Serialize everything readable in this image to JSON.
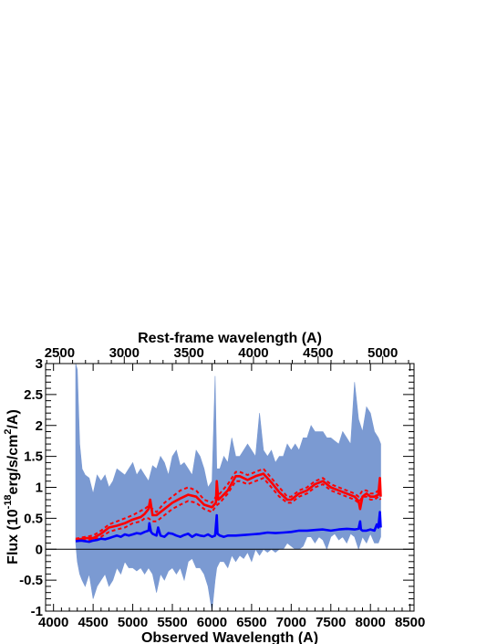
{
  "chart_data": {
    "type": "line",
    "xlabel": "Observed Wavelength (A)",
    "x2label": "Rest-frame wavelength (A)",
    "ylabel": {
      "base": "Flux (10",
      "exp1": "-18",
      "mid": "erg/s/cm",
      "exp2": "2",
      "end": "/A)"
    },
    "xlim": [
      3900,
      8550
    ],
    "ylim": [
      -1,
      3
    ],
    "x_ticks": [
      4000,
      4500,
      5000,
      5500,
      6000,
      6500,
      7000,
      7500,
      8000,
      8500
    ],
    "x2_ticks": [
      2500,
      3000,
      3500,
      4000,
      4500,
      5000
    ],
    "y_ticks": [
      -1,
      -0.5,
      0,
      0.5,
      1,
      1.5,
      2,
      2.5,
      3
    ],
    "redshift_factor": 1.631,
    "zero_line": true,
    "colors": {
      "observed": "#7b9ad2",
      "model": "#ff0000",
      "error": "#0000ff"
    },
    "series": [
      {
        "style": "band",
        "x": [
          4280,
          4300,
          4330,
          4360,
          4400,
          4450,
          4500,
          4550,
          4600,
          4650,
          4700,
          4750,
          4800,
          4850,
          4900,
          4950,
          5000,
          5050,
          5100,
          5150,
          5200,
          5250,
          5300,
          5350,
          5400,
          5450,
          5500,
          5550,
          5600,
          5650,
          5700,
          5750,
          5800,
          5850,
          5900,
          5950,
          6000,
          6040,
          6060,
          6100,
          6150,
          6200,
          6250,
          6300,
          6350,
          6400,
          6450,
          6500,
          6550,
          6600,
          6650,
          6700,
          6750,
          6800,
          6850,
          6900,
          6950,
          7000,
          7050,
          7100,
          7150,
          7200,
          7250,
          7300,
          7350,
          7400,
          7450,
          7500,
          7550,
          7600,
          7650,
          7700,
          7750,
          7800,
          7850,
          7900,
          7950,
          8000,
          8050,
          8100,
          8130
        ],
        "upper": [
          3.0,
          2.9,
          1.7,
          1.3,
          1.2,
          1.15,
          0.9,
          1.2,
          1.1,
          1.2,
          1.0,
          1.1,
          1.3,
          1.25,
          1.2,
          1.3,
          1.4,
          1.2,
          1.3,
          1.2,
          1.1,
          1.35,
          1.3,
          1.5,
          1.4,
          1.2,
          1.5,
          1.6,
          1.35,
          1.4,
          1.3,
          1.2,
          1.6,
          1.5,
          1.3,
          1.0,
          1.1,
          2.8,
          1.3,
          1.3,
          1.5,
          1.4,
          1.8,
          1.5,
          1.5,
          1.6,
          1.7,
          1.6,
          1.5,
          2.2,
          1.6,
          1.5,
          1.6,
          1.4,
          1.5,
          1.5,
          1.7,
          1.6,
          1.7,
          1.6,
          1.8,
          1.8,
          2.0,
          1.9,
          1.9,
          1.9,
          1.8,
          1.8,
          1.75,
          1.7,
          1.9,
          1.8,
          1.7,
          2.7,
          2.1,
          1.9,
          2.3,
          2.2,
          1.9,
          1.8,
          1.7
        ],
        "lower": [
          0.1,
          -0.2,
          -0.4,
          -0.5,
          -0.6,
          -0.4,
          -0.8,
          -0.6,
          -0.5,
          -0.4,
          -0.6,
          -0.5,
          -0.3,
          -0.4,
          -0.2,
          -0.3,
          -0.3,
          -0.35,
          -0.3,
          -0.4,
          -0.3,
          -0.4,
          -0.7,
          -0.4,
          -0.5,
          -0.35,
          -0.3,
          -0.4,
          -0.3,
          -0.5,
          -0.2,
          -0.15,
          -0.3,
          -0.3,
          -0.4,
          -0.6,
          -1.0,
          -0.5,
          -0.3,
          -0.2,
          -0.2,
          -0.3,
          -0.1,
          -0.2,
          -0.1,
          -0.15,
          -0.05,
          -0.2,
          0.0,
          -0.1,
          0.0,
          -0.05,
          0.0,
          -0.05,
          0.0,
          0.0,
          0.1,
          0.05,
          0.0,
          0.0,
          0.05,
          0.2,
          0.2,
          0.1,
          0.2,
          0.15,
          0.0,
          0.2,
          0.25,
          0.15,
          0.2,
          0.1,
          0.25,
          0.2,
          0.0,
          0.2,
          0.1,
          0.25,
          0.1,
          0.1,
          0.2
        ]
      },
      {
        "style": "dashed",
        "x": [
          4280,
          4400,
          4500,
          4600,
          4700,
          4800,
          4900,
          5000,
          5100,
          5150,
          5200,
          5250,
          5300,
          5400,
          5500,
          5600,
          5700,
          5800,
          5900,
          6000,
          6050,
          6100,
          6200,
          6300,
          6350,
          6450,
          6550,
          6650,
          6750,
          6850,
          6950,
          7000,
          7100,
          7200,
          7300,
          7400,
          7500,
          7600,
          7700,
          7800,
          7850,
          7900,
          7950,
          8000,
          8050,
          8100,
          8130
        ],
        "y": [
          0.17,
          0.2,
          0.22,
          0.3,
          0.4,
          0.45,
          0.5,
          0.55,
          0.62,
          0.65,
          0.7,
          0.65,
          0.6,
          0.75,
          0.85,
          0.95,
          1.0,
          0.95,
          0.8,
          0.75,
          0.85,
          0.9,
          1.05,
          1.25,
          1.25,
          1.2,
          1.25,
          1.3,
          1.15,
          1.0,
          0.85,
          0.85,
          0.95,
          1.0,
          1.1,
          1.15,
          1.05,
          1.0,
          0.95,
          0.9,
          0.85,
          0.95,
          0.95,
          0.9,
          0.9,
          0.95,
          0.9
        ]
      },
      {
        "style": "dashed",
        "x": [
          4280,
          4400,
          4500,
          4600,
          4700,
          4800,
          4900,
          5000,
          5100,
          5150,
          5200,
          5250,
          5300,
          5400,
          5500,
          5600,
          5700,
          5800,
          5900,
          6000,
          6050,
          6100,
          6200,
          6300,
          6350,
          6450,
          6550,
          6650,
          6750,
          6850,
          6950,
          7000,
          7100,
          7200,
          7300,
          7400,
          7500,
          7600,
          7700,
          7800,
          7850,
          7900,
          7950,
          8000,
          8050,
          8100,
          8130
        ],
        "y": [
          0.14,
          0.15,
          0.15,
          0.2,
          0.28,
          0.32,
          0.35,
          0.42,
          0.45,
          0.5,
          0.5,
          0.45,
          0.45,
          0.55,
          0.65,
          0.72,
          0.78,
          0.75,
          0.65,
          0.6,
          0.7,
          0.75,
          0.9,
          1.1,
          1.1,
          1.05,
          1.1,
          1.15,
          1.0,
          0.85,
          0.75,
          0.75,
          0.85,
          0.9,
          1.0,
          1.05,
          0.95,
          0.9,
          0.85,
          0.8,
          0.75,
          0.85,
          0.85,
          0.8,
          0.8,
          0.85,
          0.8
        ]
      },
      {
        "style": "solid",
        "x": [
          4280,
          4400,
          4500,
          4600,
          4700,
          4800,
          4900,
          5000,
          5100,
          5150,
          5200,
          5220,
          5250,
          5300,
          5400,
          5500,
          5600,
          5700,
          5800,
          5900,
          6000,
          6050,
          6060,
          6080,
          6100,
          6200,
          6300,
          6350,
          6450,
          6550,
          6650,
          6750,
          6850,
          6950,
          7000,
          7100,
          7200,
          7300,
          7400,
          7500,
          7600,
          7700,
          7800,
          7850,
          7870,
          7900,
          7950,
          8000,
          8050,
          8100,
          8120,
          8130
        ],
        "y": [
          0.15,
          0.18,
          0.18,
          0.25,
          0.35,
          0.38,
          0.42,
          0.48,
          0.52,
          0.57,
          0.65,
          0.8,
          0.55,
          0.55,
          0.65,
          0.75,
          0.82,
          0.88,
          0.85,
          0.72,
          0.68,
          0.75,
          1.1,
          0.8,
          0.82,
          0.95,
          1.18,
          1.18,
          1.12,
          1.18,
          1.22,
          1.08,
          0.92,
          0.8,
          0.8,
          0.9,
          0.95,
          1.05,
          1.1,
          1.0,
          0.95,
          0.9,
          0.85,
          0.78,
          0.65,
          0.85,
          0.9,
          0.85,
          0.85,
          0.88,
          1.15,
          0.85
        ]
      },
      {
        "style": "thick",
        "x": [
          4280,
          4350,
          4400,
          4450,
          4500,
          4550,
          4600,
          4650,
          4700,
          4750,
          4800,
          4850,
          4900,
          4950,
          5000,
          5050,
          5100,
          5150,
          5200,
          5210,
          5230,
          5250,
          5300,
          5320,
          5350,
          5400,
          5450,
          5500,
          5550,
          5600,
          5650,
          5700,
          5750,
          5800,
          5850,
          5900,
          5950,
          6000,
          6040,
          6060,
          6070,
          6100,
          6150,
          6200,
          6300,
          6400,
          6500,
          6600,
          6700,
          6800,
          6900,
          7000,
          7100,
          7200,
          7300,
          7400,
          7500,
          7600,
          7700,
          7800,
          7850,
          7870,
          7880,
          7900,
          7950,
          8000,
          8050,
          8080,
          8100,
          8120,
          8130
        ],
        "y": [
          0.13,
          0.14,
          0.13,
          0.12,
          0.14,
          0.15,
          0.17,
          0.16,
          0.18,
          0.2,
          0.22,
          0.2,
          0.24,
          0.22,
          0.24,
          0.26,
          0.25,
          0.28,
          0.3,
          0.42,
          0.28,
          0.25,
          0.22,
          0.35,
          0.22,
          0.2,
          0.26,
          0.25,
          0.22,
          0.2,
          0.23,
          0.25,
          0.2,
          0.24,
          0.22,
          0.21,
          0.24,
          0.2,
          0.22,
          0.55,
          0.25,
          0.22,
          0.2,
          0.22,
          0.22,
          0.23,
          0.24,
          0.25,
          0.27,
          0.26,
          0.27,
          0.28,
          0.3,
          0.3,
          0.31,
          0.32,
          0.3,
          0.32,
          0.33,
          0.32,
          0.33,
          0.45,
          0.32,
          0.3,
          0.3,
          0.32,
          0.3,
          0.4,
          0.35,
          0.6,
          0.35
        ]
      }
    ]
  }
}
